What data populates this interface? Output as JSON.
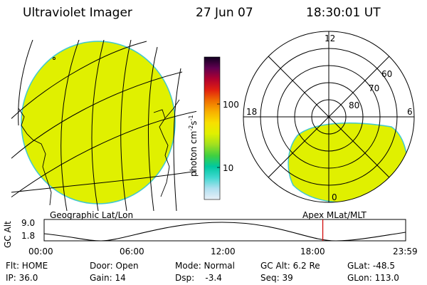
{
  "header": {
    "instrument": "Ultraviolet Imager",
    "date": "27 Jun 07",
    "time": "18:30:01 UT"
  },
  "left_panel": {
    "label": "Geographic Lat/Lon"
  },
  "right_panel": {
    "label": "Apex MLat/MLT",
    "mlt_labels": [
      "12",
      "18",
      "6",
      "0"
    ],
    "mlat_labels": [
      "60",
      "70",
      "80"
    ]
  },
  "colorbar": {
    "unit_prefix": "photon cm",
    "unit_sup1": "-2",
    "unit_mid": "s",
    "unit_sup2": "-1",
    "ticks": [
      "100",
      "10"
    ],
    "stops": [
      "#e8f0f8",
      "#b0e0f0",
      "#40d8d0",
      "#00c8a0",
      "#40d040",
      "#a0e020",
      "#e0f000",
      "#f8e000",
      "#f8b000",
      "#f07000",
      "#e02010",
      "#b00030",
      "#600050",
      "#100020"
    ]
  },
  "orbit": {
    "axis_title": "GC Alt",
    "y_ticks": [
      "9.0",
      "1.8"
    ],
    "x_ticks": [
      "00:00",
      "06:00",
      "12:00",
      "18:00",
      "23:59"
    ],
    "current_time_hours": 18.5
  },
  "status": {
    "row1": [
      "Flt: HOME",
      "Door: Open",
      "Mode: Normal",
      "GC Alt: 6.2 Re",
      "GLat: -48.5"
    ],
    "row2": [
      "IP: 36.0",
      "Gain: 14",
      "Dsp:    -3.4",
      "Seq: 39",
      "GLon: 113.0"
    ]
  },
  "colors": {
    "aurora_fill": "#e0f000",
    "aurora_edge": "#40c8d0",
    "grid": "#000000",
    "marker": "#d00000"
  }
}
